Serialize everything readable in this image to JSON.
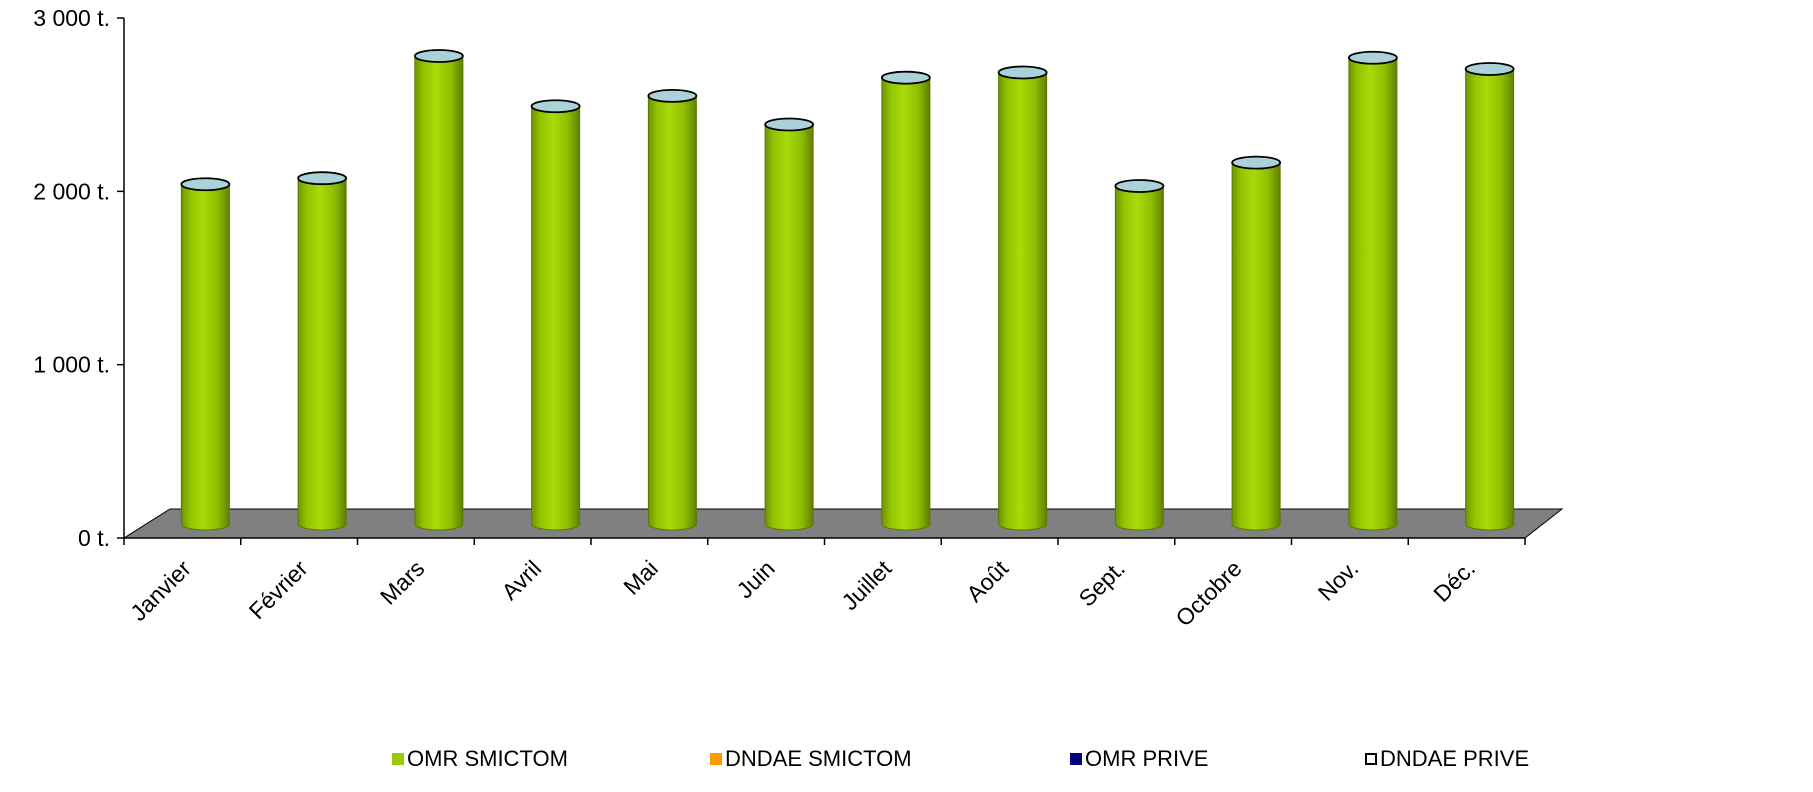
{
  "chart_data": {
    "type": "bar",
    "style": "3d-cylinder",
    "categories": [
      "Janvier",
      "Février",
      "Mars",
      "Avril",
      "Mai",
      "Juin",
      "Juillet",
      "Août",
      "Sept.",
      "Octobre",
      "Nov.",
      "Déc."
    ],
    "series": [
      {
        "name": "OMR SMICTOM",
        "color": "#99cc00",
        "values": [
          1960,
          1995,
          2700,
          2410,
          2470,
          2305,
          2575,
          2605,
          1950,
          2085,
          2690,
          2625
        ]
      },
      {
        "name": "DNDAE SMICTOM",
        "color": "#ff9900",
        "values": [
          0,
          0,
          0,
          0,
          0,
          0,
          0,
          0,
          0,
          0,
          0,
          0
        ]
      },
      {
        "name": "OMR PRIVE",
        "color": "#000080",
        "values": [
          0,
          0,
          0,
          0,
          0,
          0,
          0,
          0,
          0,
          0,
          0,
          0
        ]
      },
      {
        "name": "DNDAE PRIVE",
        "color": "#ffffff",
        "values": [
          0,
          0,
          0,
          0,
          0,
          0,
          0,
          0,
          0,
          0,
          0,
          0
        ]
      }
    ],
    "yticks": [
      {
        "value": 0,
        "label": "0 t."
      },
      {
        "value": 1000,
        "label": "1 000 t."
      },
      {
        "value": 2000,
        "label": "2 000 t."
      },
      {
        "value": 3000,
        "label": "3 000 t."
      }
    ],
    "ylim": [
      0,
      3000
    ],
    "title": "",
    "xlabel": "",
    "ylabel": "",
    "grid": false,
    "legend_position": "bottom",
    "floor_color": "#808080",
    "cap_color": "#a9d3d9"
  }
}
